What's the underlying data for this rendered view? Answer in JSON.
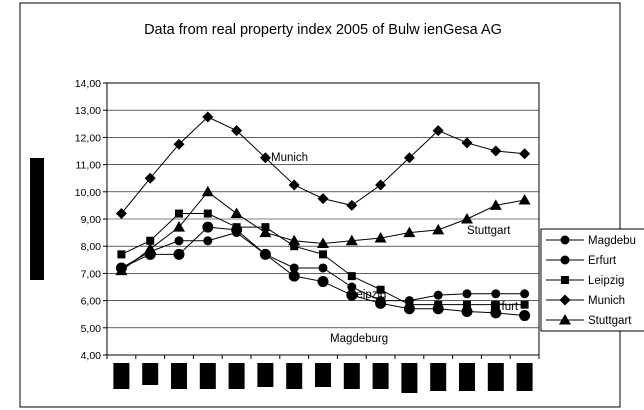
{
  "chart_data": {
    "type": "line",
    "title": "Data from real property index 2005 of Bulw ienGesa AG",
    "xlabel": "",
    "ylabel": "",
    "ylim": [
      4,
      14
    ],
    "y_ticks": [
      "4,00",
      "5,00",
      "6,00",
      "7,00",
      "8,00",
      "9,00",
      "10,00",
      "11,00",
      "12,00",
      "13,00",
      "14,00"
    ],
    "grid": true,
    "legend": "right",
    "x_count": 15,
    "series": [
      {
        "name": "Magdeburg",
        "legend_label": "Magdebu",
        "marker": "circle-large",
        "values": [
          7.2,
          7.7,
          7.7,
          8.7,
          8.6,
          7.7,
          6.9,
          6.7,
          6.2,
          5.9,
          5.7,
          5.7,
          5.6,
          5.55,
          5.45
        ]
      },
      {
        "name": "Erfurt",
        "legend_label": "Erfurt",
        "marker": "circle",
        "values": [
          7.2,
          7.8,
          8.2,
          8.2,
          8.5,
          7.7,
          7.2,
          7.2,
          6.5,
          6.0,
          6.0,
          6.2,
          6.25,
          6.25,
          6.25
        ]
      },
      {
        "name": "Leipzig",
        "legend_label": "Leipzig",
        "marker": "square",
        "values": [
          7.7,
          8.2,
          9.2,
          9.2,
          8.7,
          8.7,
          8.0,
          7.7,
          6.9,
          6.4,
          5.85,
          5.85,
          5.85,
          5.85,
          5.85
        ]
      },
      {
        "name": "Munich",
        "legend_label": "Munich",
        "marker": "diamond",
        "values": [
          9.2,
          10.5,
          11.75,
          12.75,
          12.25,
          11.25,
          10.25,
          9.75,
          9.5,
          10.25,
          11.25,
          12.25,
          11.8,
          11.5,
          11.4
        ]
      },
      {
        "name": "Stuttgart",
        "legend_label": "Stuttgart",
        "marker": "triangle",
        "values": [
          7.1,
          7.9,
          8.7,
          10.0,
          9.2,
          8.5,
          8.2,
          8.1,
          8.2,
          8.3,
          8.5,
          8.6,
          9.0,
          9.5,
          9.7
        ]
      }
    ],
    "annotations": [
      {
        "text": "Munich",
        "series": "Munich"
      },
      {
        "text": "Leipzig",
        "series": "Leipzig"
      },
      {
        "text": "Magdeburg",
        "series": "Magdeburg"
      },
      {
        "text": "Stuttgart",
        "series": "Stuttgart"
      },
      {
        "text": "Erfurt",
        "series": "Erfurt"
      }
    ]
  }
}
